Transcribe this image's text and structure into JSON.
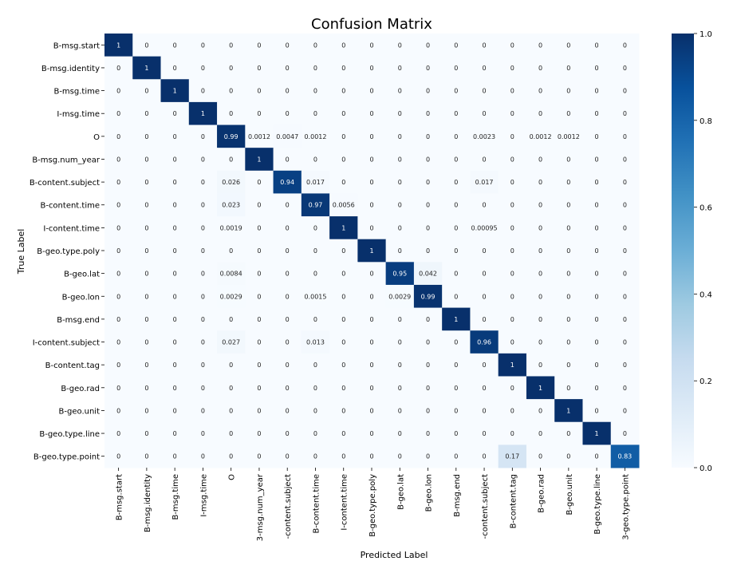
{
  "chart_data": {
    "type": "heatmap",
    "title": "Confusion Matrix",
    "xlabel": "Predicted Label",
    "ylabel": "True Label",
    "x_tick_labels": [
      "B-msg.start",
      "B-msg.identity",
      "B-msg.time",
      "I-msg.time",
      "O",
      "3-msg.num_year",
      "-content.subject",
      "B-content.time",
      "I-content.time",
      "B-geo.type.poly",
      "B-geo.lat",
      "B-geo.lon",
      "B-msg.end",
      "-content.subject",
      "B-content.tag",
      "B-geo.rad",
      "B-geo.unit",
      "B-geo.type.line",
      "3-geo.type.point"
    ],
    "y_tick_labels": [
      "B-msg.start",
      "B-msg.identity",
      "B-msg.time",
      "I-msg.time",
      "O",
      "B-msg.num_year",
      "B-content.subject",
      "B-content.time",
      "I-content.time",
      "B-geo.type.poly",
      "B-geo.lat",
      "B-geo.lon",
      "B-msg.end",
      "I-content.subject",
      "B-content.tag",
      "B-geo.rad",
      "B-geo.unit",
      "B-geo.type.line",
      "B-geo.type.point"
    ],
    "values": [
      [
        "1",
        "0",
        "0",
        "0",
        "0",
        "0",
        "0",
        "0",
        "0",
        "0",
        "0",
        "0",
        "0",
        "0",
        "0",
        "0",
        "0",
        "0",
        "0"
      ],
      [
        "0",
        "1",
        "0",
        "0",
        "0",
        "0",
        "0",
        "0",
        "0",
        "0",
        "0",
        "0",
        "0",
        "0",
        "0",
        "0",
        "0",
        "0",
        "0"
      ],
      [
        "0",
        "0",
        "1",
        "0",
        "0",
        "0",
        "0",
        "0",
        "0",
        "0",
        "0",
        "0",
        "0",
        "0",
        "0",
        "0",
        "0",
        "0",
        "0"
      ],
      [
        "0",
        "0",
        "0",
        "1",
        "0",
        "0",
        "0",
        "0",
        "0",
        "0",
        "0",
        "0",
        "0",
        "0",
        "0",
        "0",
        "0",
        "0",
        "0"
      ],
      [
        "0",
        "0",
        "0",
        "0",
        "0.99",
        "0.0012",
        "0.0047",
        "0.0012",
        "0",
        "0",
        "0",
        "0",
        "0",
        "0.0023",
        "0",
        "0.0012",
        "0.0012",
        "0",
        "0"
      ],
      [
        "0",
        "0",
        "0",
        "0",
        "0",
        "1",
        "0",
        "0",
        "0",
        "0",
        "0",
        "0",
        "0",
        "0",
        "0",
        "0",
        "0",
        "0",
        "0"
      ],
      [
        "0",
        "0",
        "0",
        "0",
        "0.026",
        "0",
        "0.94",
        "0.017",
        "0",
        "0",
        "0",
        "0",
        "0",
        "0.017",
        "0",
        "0",
        "0",
        "0",
        "0"
      ],
      [
        "0",
        "0",
        "0",
        "0",
        "0.023",
        "0",
        "0",
        "0.97",
        "0.0056",
        "0",
        "0",
        "0",
        "0",
        "0",
        "0",
        "0",
        "0",
        "0",
        "0"
      ],
      [
        "0",
        "0",
        "0",
        "0",
        "0.0019",
        "0",
        "0",
        "0",
        "1",
        "0",
        "0",
        "0",
        "0",
        "0.00095",
        "0",
        "0",
        "0",
        "0",
        "0"
      ],
      [
        "0",
        "0",
        "0",
        "0",
        "0",
        "0",
        "0",
        "0",
        "0",
        "1",
        "0",
        "0",
        "0",
        "0",
        "0",
        "0",
        "0",
        "0",
        "0"
      ],
      [
        "0",
        "0",
        "0",
        "0",
        "0.0084",
        "0",
        "0",
        "0",
        "0",
        "0",
        "0.95",
        "0.042",
        "0",
        "0",
        "0",
        "0",
        "0",
        "0",
        "0"
      ],
      [
        "0",
        "0",
        "0",
        "0",
        "0.0029",
        "0",
        "0",
        "0.0015",
        "0",
        "0",
        "0.0029",
        "0.99",
        "0",
        "0",
        "0",
        "0",
        "0",
        "0",
        "0"
      ],
      [
        "0",
        "0",
        "0",
        "0",
        "0",
        "0",
        "0",
        "0",
        "0",
        "0",
        "0",
        "0",
        "1",
        "0",
        "0",
        "0",
        "0",
        "0",
        "0"
      ],
      [
        "0",
        "0",
        "0",
        "0",
        "0.027",
        "0",
        "0",
        "0.013",
        "0",
        "0",
        "0",
        "0",
        "0",
        "0.96",
        "0",
        "0",
        "0",
        "0",
        "0"
      ],
      [
        "0",
        "0",
        "0",
        "0",
        "0",
        "0",
        "0",
        "0",
        "0",
        "0",
        "0",
        "0",
        "0",
        "0",
        "1",
        "0",
        "0",
        "0",
        "0"
      ],
      [
        "0",
        "0",
        "0",
        "0",
        "0",
        "0",
        "0",
        "0",
        "0",
        "0",
        "0",
        "0",
        "0",
        "0",
        "0",
        "1",
        "0",
        "0",
        "0"
      ],
      [
        "0",
        "0",
        "0",
        "0",
        "0",
        "0",
        "0",
        "0",
        "0",
        "0",
        "0",
        "0",
        "0",
        "0",
        "0",
        "0",
        "1",
        "0",
        "0"
      ],
      [
        "0",
        "0",
        "0",
        "0",
        "0",
        "0",
        "0",
        "0",
        "0",
        "0",
        "0",
        "0",
        "0",
        "0",
        "0",
        "0",
        "0",
        "1",
        "0"
      ],
      [
        "0",
        "0",
        "0",
        "0",
        "0",
        "0",
        "0",
        "0",
        "0",
        "0",
        "0",
        "0",
        "0",
        "0",
        "0.17",
        "0",
        "0",
        "0",
        "0.83"
      ]
    ],
    "colorbar": {
      "range": [
        0,
        1
      ],
      "ticks": [
        "0.0",
        "0.2",
        "0.4",
        "0.6",
        "0.8",
        "1.0"
      ],
      "colormap": "Blues"
    }
  }
}
